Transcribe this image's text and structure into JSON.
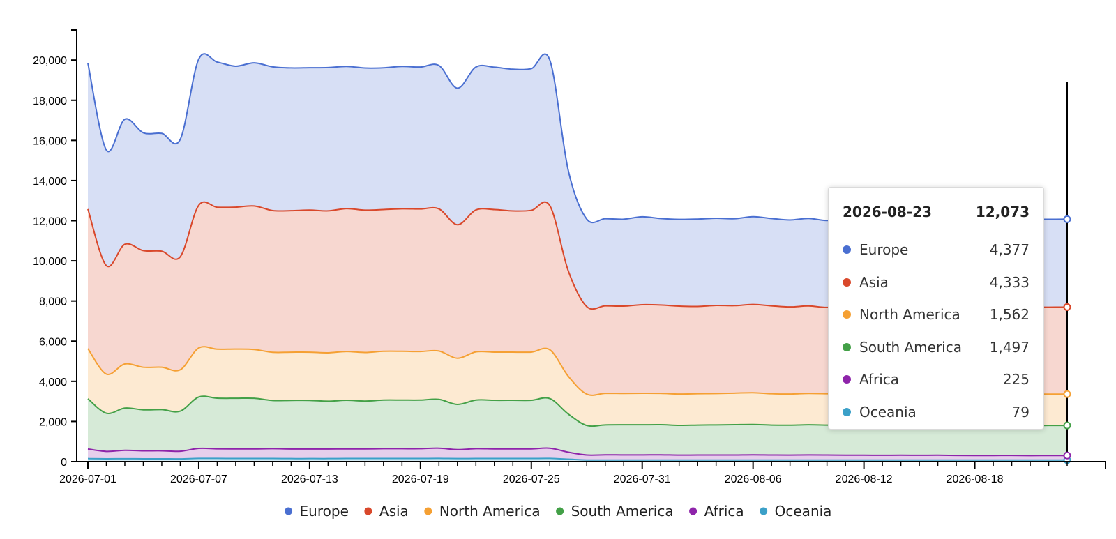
{
  "chart_data": {
    "type": "area",
    "stacked": true,
    "curve": "smooth",
    "x": [
      "2026-07-01",
      "2026-07-02",
      "2026-07-03",
      "2026-07-04",
      "2026-07-05",
      "2026-07-06",
      "2026-07-07",
      "2026-07-08",
      "2026-07-09",
      "2026-07-10",
      "2026-07-11",
      "2026-07-12",
      "2026-07-13",
      "2026-07-14",
      "2026-07-15",
      "2026-07-16",
      "2026-07-17",
      "2026-07-18",
      "2026-07-19",
      "2026-07-20",
      "2026-07-21",
      "2026-07-22",
      "2026-07-23",
      "2026-07-24",
      "2026-07-25",
      "2026-07-26",
      "2026-07-27",
      "2026-07-28",
      "2026-07-29",
      "2026-07-30",
      "2026-07-31",
      "2026-08-01",
      "2026-08-02",
      "2026-08-03",
      "2026-08-04",
      "2026-08-05",
      "2026-08-06",
      "2026-08-07",
      "2026-08-08",
      "2026-08-09",
      "2026-08-10",
      "2026-08-11",
      "2026-08-12",
      "2026-08-13",
      "2026-08-14",
      "2026-08-15",
      "2026-08-16",
      "2026-08-17",
      "2026-08-18",
      "2026-08-19",
      "2026-08-20",
      "2026-08-21",
      "2026-08-22",
      "2026-08-23"
    ],
    "x_tick_labels": [
      "2026-07-01",
      "2026-07-07",
      "2026-07-13",
      "2026-07-19",
      "2026-07-25",
      "2026-07-31",
      "2026-08-06",
      "2026-08-12",
      "2026-08-18"
    ],
    "y_ticks": [
      0,
      2000,
      4000,
      6000,
      8000,
      10000,
      12000,
      14000,
      16000,
      18000,
      20000
    ],
    "y_tick_labels": [
      "0",
      "2,000",
      "4,000",
      "6,000",
      "8,000",
      "10,000",
      "12,000",
      "14,000",
      "16,000",
      "18,000",
      "20,000"
    ],
    "ylim": [
      0,
      21500
    ],
    "grid": false,
    "legend_position": "bottom",
    "series": [
      {
        "name": "Oceania",
        "color": "#3ba0c8",
        "values": [
          150,
          140,
          145,
          140,
          140,
          135,
          160,
          160,
          155,
          155,
          155,
          150,
          150,
          150,
          155,
          155,
          155,
          155,
          155,
          160,
          150,
          155,
          155,
          155,
          155,
          160,
          120,
          80,
          80,
          80,
          80,
          80,
          80,
          80,
          80,
          80,
          80,
          80,
          80,
          80,
          80,
          80,
          80,
          80,
          80,
          80,
          80,
          80,
          80,
          80,
          80,
          80,
          80,
          79
        ]
      },
      {
        "name": "Africa",
        "color": "#8e24aa",
        "values": [
          480,
          370,
          420,
          400,
          400,
          380,
          500,
          480,
          480,
          480,
          490,
          480,
          480,
          480,
          480,
          480,
          490,
          490,
          490,
          510,
          450,
          490,
          480,
          480,
          480,
          510,
          350,
          250,
          260,
          255,
          255,
          260,
          245,
          250,
          250,
          250,
          260,
          250,
          245,
          255,
          250,
          240,
          240,
          235,
          240,
          235,
          240,
          230,
          225,
          225,
          230,
          220,
          225,
          225
        ]
      },
      {
        "name": "South America",
        "color": "#43a047",
        "values": [
          2500,
          1900,
          2100,
          2040,
          2050,
          2000,
          2560,
          2520,
          2520,
          2520,
          2400,
          2420,
          2420,
          2380,
          2420,
          2380,
          2420,
          2420,
          2420,
          2430,
          2250,
          2420,
          2420,
          2420,
          2420,
          2470,
          1900,
          1470,
          1490,
          1500,
          1500,
          1500,
          1480,
          1490,
          1500,
          1510,
          1510,
          1490,
          1490,
          1500,
          1490,
          1480,
          1480,
          1480,
          1490,
          1500,
          1490,
          1500,
          1500,
          1495,
          1500,
          1495,
          1495,
          1497
        ]
      },
      {
        "name": "North America",
        "color": "#f5a033",
        "values": [
          2500,
          1950,
          2200,
          2120,
          2110,
          2060,
          2440,
          2440,
          2450,
          2430,
          2400,
          2400,
          2400,
          2410,
          2430,
          2420,
          2430,
          2430,
          2420,
          2410,
          2300,
          2400,
          2400,
          2400,
          2400,
          2430,
          1880,
          1560,
          1570,
          1560,
          1570,
          1560,
          1560,
          1560,
          1560,
          1570,
          1580,
          1560,
          1550,
          1560,
          1560,
          1560,
          1560,
          1560,
          1560,
          1560,
          1560,
          1570,
          1560,
          1560,
          1560,
          1562,
          1560,
          1562
        ]
      },
      {
        "name": "Asia",
        "color": "#d9482b",
        "values": [
          6950,
          5400,
          5960,
          5810,
          5780,
          5630,
          7110,
          7070,
          7070,
          7150,
          7060,
          7050,
          7080,
          7070,
          7120,
          7090,
          7060,
          7100,
          7100,
          7080,
          6650,
          7070,
          7100,
          7030,
          7060,
          7180,
          5250,
          4360,
          4360,
          4350,
          4410,
          4400,
          4380,
          4350,
          4390,
          4360,
          4400,
          4380,
          4340,
          4360,
          4300,
          4420,
          4350,
          4360,
          4340,
          4350,
          4330,
          4340,
          4330,
          4340,
          4330,
          4333,
          4330,
          4333
        ]
      },
      {
        "name": "Europe",
        "color": "#4a6fd1",
        "values": [
          7270,
          5760,
          6230,
          5870,
          5870,
          5850,
          7280,
          7230,
          7020,
          7130,
          7160,
          7110,
          7090,
          7140,
          7080,
          7080,
          7060,
          7090,
          7070,
          7140,
          6800,
          7120,
          7090,
          7060,
          7060,
          7250,
          5000,
          4360,
          4340,
          4330,
          4380,
          4310,
          4320,
          4350,
          4340,
          4330,
          4370,
          4350,
          4330,
          4360,
          4330,
          4350,
          4340,
          4360,
          4350,
          4370,
          4360,
          4380,
          4370,
          4377,
          4370,
          4377,
          4380,
          4377
        ]
      }
    ]
  },
  "legend": {
    "items": [
      {
        "name": "Europe",
        "color": "#4a6fd1"
      },
      {
        "name": "Asia",
        "color": "#d9482b"
      },
      {
        "name": "North America",
        "color": "#f5a033"
      },
      {
        "name": "South America",
        "color": "#43a047"
      },
      {
        "name": "Africa",
        "color": "#8e24aa"
      },
      {
        "name": "Oceania",
        "color": "#3ba0c8"
      }
    ]
  },
  "tooltip": {
    "date": "2026-08-23",
    "total": "12,073",
    "rows": [
      {
        "name": "Europe",
        "value": "4,377",
        "color": "#4a6fd1"
      },
      {
        "name": "Asia",
        "value": "4,333",
        "color": "#d9482b"
      },
      {
        "name": "North America",
        "value": "1,562",
        "color": "#f5a033"
      },
      {
        "name": "South America",
        "value": "1,497",
        "color": "#43a047"
      },
      {
        "name": "Africa",
        "value": "225",
        "color": "#8e24aa"
      },
      {
        "name": "Oceania",
        "value": "79",
        "color": "#3ba0c8"
      }
    ]
  }
}
